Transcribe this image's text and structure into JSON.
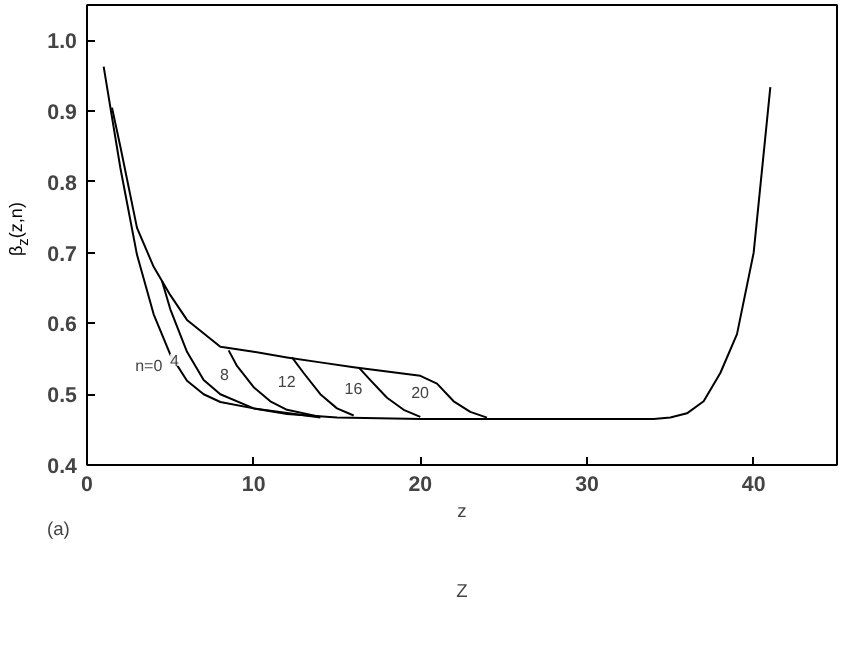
{
  "chart_data": {
    "type": "line",
    "xlabel": "z",
    "ylabel": "β$_{z}$(z,n)",
    "xlim": [
      0,
      45
    ],
    "ylim": [
      0.4,
      1.05
    ],
    "xticks": [
      0,
      10,
      20,
      30,
      40
    ],
    "yticks": [
      0.4,
      0.5,
      0.6,
      0.7,
      0.8,
      0.9,
      {
        "value": 1.0,
        "label": "1.0"
      }
    ],
    "grid": false,
    "marker": "none",
    "line_style": "solid",
    "series": [
      {
        "color": "#000000",
        "x": [
          1,
          2,
          3,
          4,
          5,
          6,
          7,
          8,
          10,
          12,
          15,
          20,
          25,
          30,
          34,
          35,
          36,
          37,
          38,
          39,
          40,
          41
        ],
        "values": [
          0.963,
          0.82,
          0.697,
          0.613,
          0.556,
          0.519,
          0.5,
          0.489,
          0.48,
          0.472,
          0.467,
          0.465,
          0.465,
          0.465,
          0.465,
          0.467,
          0.473,
          0.49,
          0.53,
          0.585,
          0.7,
          0.934
        ]
      },
      {
        "color": "#000000",
        "x": [
          1.5,
          2,
          3,
          4,
          5,
          6,
          8,
          10,
          12,
          14,
          16,
          18,
          20,
          21,
          22,
          23,
          24
        ],
        "values": [
          0.905,
          0.85,
          0.735,
          0.68,
          0.64,
          0.605,
          0.567,
          0.56,
          0.552,
          0.545,
          0.538,
          0.532,
          0.526,
          0.515,
          0.49,
          0.475,
          0.467
        ]
      },
      {
        "color": "#000000",
        "x": [
          4.5,
          5,
          6,
          7,
          8,
          10,
          14
        ],
        "values": [
          0.66,
          0.62,
          0.56,
          0.52,
          0.5,
          0.48,
          0.467
        ]
      },
      {
        "color": "#000000",
        "x": [
          8.5,
          9,
          10,
          11,
          12,
          14
        ],
        "values": [
          0.562,
          0.54,
          0.51,
          0.49,
          0.478,
          0.468
        ]
      },
      {
        "color": "#000000",
        "x": [
          12.3,
          13,
          14,
          15,
          16
        ],
        "values": [
          0.552,
          0.53,
          0.5,
          0.48,
          0.47
        ]
      },
      {
        "color": "#000000",
        "x": [
          16.3,
          17,
          18,
          19,
          20
        ],
        "values": [
          0.538,
          0.52,
          0.495,
          0.478,
          0.468
        ]
      }
    ],
    "annotations": [
      {
        "text": "n=0",
        "x": 5,
        "y": 0.556
      },
      {
        "text": "4",
        "x": 6,
        "y": 0.56
      },
      {
        "text": "8",
        "x": 9,
        "y": 0.54
      },
      {
        "text": "12",
        "x": 13,
        "y": 0.53
      },
      {
        "text": "16",
        "x": 17,
        "y": 0.52
      },
      {
        "text": "20",
        "x": 21,
        "y": 0.515
      },
      "(a)",
      "Z"
    ]
  }
}
